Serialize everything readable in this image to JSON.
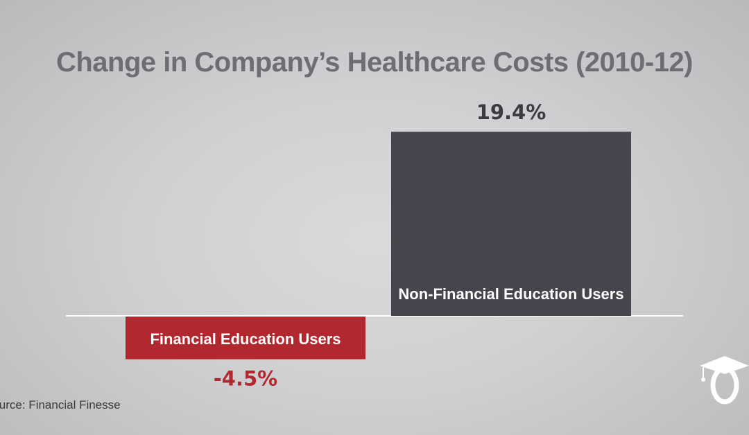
{
  "chart_data": {
    "type": "bar",
    "title": "Change in Company’s Healthcare Costs (2010-12)",
    "categories": [
      "Financial Education Users",
      "Non-Financial Education Users"
    ],
    "values": [
      -4.5,
      19.4
    ],
    "value_labels": [
      "-4.5%",
      "19.4%"
    ],
    "colors": [
      "#b1282e",
      "#45454d"
    ],
    "value_label_colors": [
      "#b1282e",
      "#3b3b42"
    ],
    "baseline_color": "#ffffff",
    "unit": "%",
    "grid": false
  },
  "source_text": "Source: Financial Finesse",
  "logo_icon": "graduation-cap-logo-icon"
}
